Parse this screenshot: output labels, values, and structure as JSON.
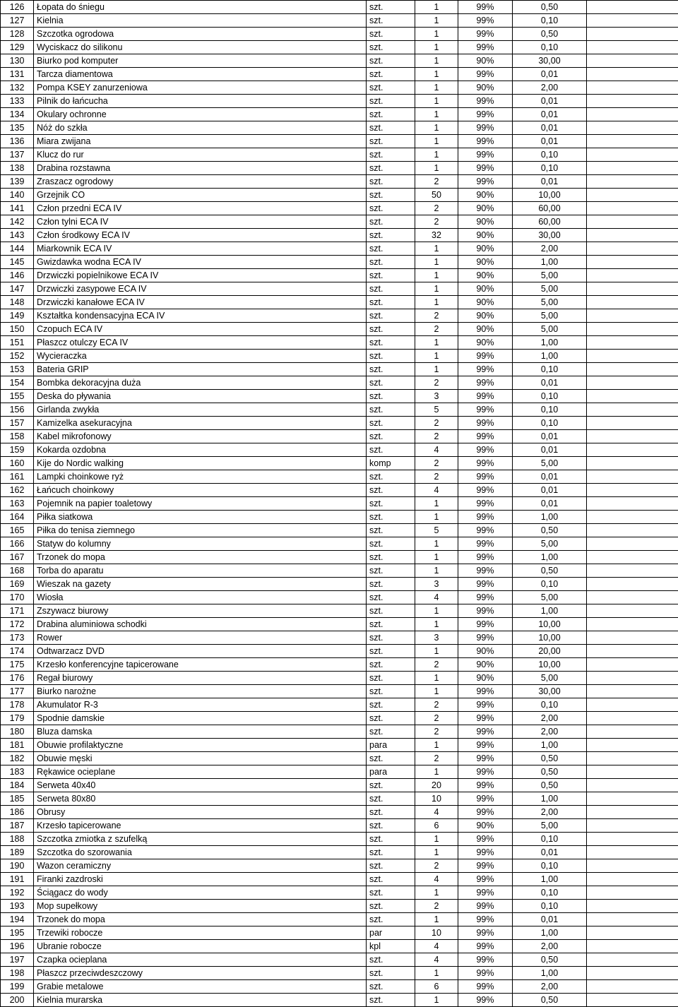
{
  "table": {
    "columns": [
      "num",
      "name",
      "unit",
      "qty",
      "pct",
      "price",
      "blank"
    ],
    "rows": [
      [
        "126",
        "Łopata do śniegu",
        "szt.",
        "1",
        "99%",
        "0,50",
        ""
      ],
      [
        "127",
        "Kielnia",
        "szt.",
        "1",
        "99%",
        "0,10",
        ""
      ],
      [
        "128",
        "Szczotka ogrodowa",
        "szt.",
        "1",
        "99%",
        "0,50",
        ""
      ],
      [
        "129",
        "Wyciskacz do silikonu",
        "szt.",
        "1",
        "99%",
        "0,10",
        ""
      ],
      [
        "130",
        "Biurko pod komputer",
        "szt.",
        "1",
        "90%",
        "30,00",
        ""
      ],
      [
        "131",
        "Tarcza diamentowa",
        "szt.",
        "1",
        "99%",
        "0,01",
        ""
      ],
      [
        "132",
        "Pompa KSEY zanurzeniowa",
        "szt.",
        "1",
        "90%",
        "2,00",
        ""
      ],
      [
        "133",
        "Pilnik do łańcucha",
        "szt.",
        "1",
        "99%",
        "0,01",
        ""
      ],
      [
        "134",
        "Okulary ochronne",
        "szt.",
        "1",
        "99%",
        "0,01",
        ""
      ],
      [
        "135",
        "Nóż do szkła",
        "szt.",
        "1",
        "99%",
        "0,01",
        ""
      ],
      [
        "136",
        "Miara zwijana",
        "szt.",
        "1",
        "99%",
        "0,01",
        ""
      ],
      [
        "137",
        "Klucz do rur",
        "szt.",
        "1",
        "99%",
        "0,10",
        ""
      ],
      [
        "138",
        "Drabina rozstawna",
        "szt.",
        "1",
        "99%",
        "0,10",
        ""
      ],
      [
        "139",
        "Zraszacz ogrodowy",
        "szt.",
        "2",
        "99%",
        "0,01",
        ""
      ],
      [
        "140",
        "Grzejnik CO",
        "szt.",
        "50",
        "90%",
        "10,00",
        ""
      ],
      [
        "141",
        "Człon przedni  ECA  IV",
        "szt.",
        "2",
        "90%",
        "60,00",
        ""
      ],
      [
        "142",
        "Człon tylni  ECA  IV",
        "szt.",
        "2",
        "90%",
        "60,00",
        ""
      ],
      [
        "143",
        "Człon środkowy  ECA  IV",
        "szt.",
        "32",
        "90%",
        "30,00",
        ""
      ],
      [
        "144",
        "Miarkownik  ECA  IV",
        "szt.",
        "1",
        "90%",
        "2,00",
        ""
      ],
      [
        "145",
        "Gwizdawka wodna  ECA  IV",
        "szt.",
        "1",
        "90%",
        "1,00",
        ""
      ],
      [
        "146",
        "Drzwiczki popielnikowe  ECA  IV",
        "szt.",
        "1",
        "90%",
        "5,00",
        ""
      ],
      [
        "147",
        "Drzwiczki zasypowe  ECA  IV",
        "szt.",
        "1",
        "90%",
        "5,00",
        ""
      ],
      [
        "148",
        "Drzwiczki kanałowe  ECA  IV",
        "szt.",
        "1",
        "90%",
        "5,00",
        ""
      ],
      [
        "149",
        "Kształtka kondensacyjna   ECA  IV",
        "szt.",
        "2",
        "90%",
        "5,00",
        ""
      ],
      [
        "150",
        "Czopuch  ECA  IV",
        "szt.",
        "2",
        "90%",
        "5,00",
        ""
      ],
      [
        "151",
        "Płaszcz otulczy  ECA  IV",
        "szt.",
        "1",
        "90%",
        "1,00",
        ""
      ],
      [
        "152",
        "Wycieraczka",
        "szt.",
        "1",
        "99%",
        "1,00",
        ""
      ],
      [
        "153",
        "Bateria GRIP",
        "szt.",
        "1",
        "99%",
        "0,10",
        ""
      ],
      [
        "154",
        "Bombka dekoracyjna duża",
        "szt.",
        "2",
        "99%",
        "0,01",
        ""
      ],
      [
        "155",
        "Deska do pływania",
        "szt.",
        "3",
        "99%",
        "0,10",
        ""
      ],
      [
        "156",
        "Girlanda zwykła",
        "szt.",
        "5",
        "99%",
        "0,10",
        ""
      ],
      [
        "157",
        "Kamizelka asekuracyjna",
        "szt.",
        "2",
        "99%",
        "0,10",
        ""
      ],
      [
        "158",
        "Kabel mikrofonowy",
        "szt.",
        "2",
        "99%",
        "0,01",
        ""
      ],
      [
        "159",
        "Kokarda ozdobna",
        "szt.",
        "4",
        "99%",
        "0,01",
        ""
      ],
      [
        "160",
        "Kije do Nordic  walking",
        "komp",
        "2",
        "99%",
        "5,00",
        ""
      ],
      [
        "161",
        "Lampki choinkowe ryż",
        "szt.",
        "2",
        "99%",
        "0,01",
        ""
      ],
      [
        "162",
        "Łańcuch choinkowy",
        "szt.",
        "4",
        "99%",
        "0,01",
        ""
      ],
      [
        "163",
        "Pojemnik na papier toaletowy",
        "szt.",
        "1",
        "99%",
        "0,01",
        ""
      ],
      [
        "164",
        "Piłka siatkowa",
        "szt.",
        "1",
        "99%",
        "1,00",
        ""
      ],
      [
        "165",
        "Piłka do tenisa ziemnego",
        "szt.",
        "5",
        "99%",
        "0,50",
        ""
      ],
      [
        "166",
        "Statyw do kolumny",
        "szt.",
        "1",
        "99%",
        "5,00",
        ""
      ],
      [
        "167",
        "Trzonek do mopa",
        "szt.",
        "1",
        "99%",
        "1,00",
        ""
      ],
      [
        "168",
        "Torba do aparatu",
        "szt.",
        "1",
        "99%",
        "0,50",
        ""
      ],
      [
        "169",
        "Wieszak na gazety",
        "szt.",
        "3",
        "99%",
        "0,10",
        ""
      ],
      [
        "170",
        "Wiosła",
        "szt.",
        "4",
        "99%",
        "5,00",
        ""
      ],
      [
        "171",
        "Zszywacz biurowy",
        "szt.",
        "1",
        "99%",
        "1,00",
        ""
      ],
      [
        "172",
        "Drabina aluminiowa schodki",
        "szt.",
        "1",
        "99%",
        "10,00",
        ""
      ],
      [
        "173",
        "Rower",
        "szt.",
        "3",
        "99%",
        "10,00",
        ""
      ],
      [
        "174",
        "Odtwarzacz DVD",
        "szt.",
        "1",
        "90%",
        "20,00",
        ""
      ],
      [
        "175",
        "Krzesło konferencyjne  tapicerowane",
        "szt.",
        "2",
        "90%",
        "10,00",
        ""
      ],
      [
        "176",
        "Regał biurowy",
        "szt.",
        "1",
        "90%",
        "5,00",
        ""
      ],
      [
        "177",
        "Biurko narożne",
        "szt.",
        "1",
        "99%",
        "30,00",
        ""
      ],
      [
        "178",
        "Akumulator R-3",
        "szt.",
        "2",
        "99%",
        "0,10",
        ""
      ],
      [
        "179",
        "Spodnie damskie",
        "szt.",
        "2",
        "99%",
        "2,00",
        ""
      ],
      [
        "180",
        "Bluza damska",
        "szt.",
        "2",
        "99%",
        "2,00",
        ""
      ],
      [
        "181",
        "Obuwie profilaktyczne",
        "para",
        "1",
        "99%",
        "1,00",
        ""
      ],
      [
        "182",
        "Obuwie męski",
        "szt.",
        "2",
        "99%",
        "0,50",
        ""
      ],
      [
        "183",
        "Rękawice ocieplane",
        "para",
        "1",
        "99%",
        "0,50",
        ""
      ],
      [
        "184",
        "Serweta 40x40",
        "szt.",
        "20",
        "99%",
        "0,50",
        ""
      ],
      [
        "185",
        "Serweta 80x80",
        "szt.",
        "10",
        "99%",
        "1,00",
        ""
      ],
      [
        "186",
        "Obrusy",
        "szt.",
        "4",
        "99%",
        "2,00",
        ""
      ],
      [
        "187",
        "Krzesło tapicerowane",
        "szt.",
        "6",
        "90%",
        "5,00",
        ""
      ],
      [
        "188",
        "Szczotka zmiotka z szufelką",
        "szt.",
        "1",
        "99%",
        "0,10",
        ""
      ],
      [
        "189",
        "Szczotka do szorowania",
        "szt.",
        "1",
        "99%",
        "0,01",
        ""
      ],
      [
        "190",
        "Wazon ceramiczny",
        "szt.",
        "2",
        "99%",
        "0,10",
        ""
      ],
      [
        "191",
        "Firanki  zazdroski",
        "szt.",
        "4",
        "99%",
        "1,00",
        ""
      ],
      [
        "192",
        "Ściągacz do wody",
        "szt.",
        "1",
        "99%",
        "0,10",
        ""
      ],
      [
        "193",
        "Mop supełkowy",
        "szt.",
        "2",
        "99%",
        "0,10",
        ""
      ],
      [
        "194",
        "Trzonek do mopa",
        "szt.",
        "1",
        "99%",
        "0,01",
        ""
      ],
      [
        "195",
        "Trzewiki robocze",
        "par",
        "10",
        "99%",
        "1,00",
        ""
      ],
      [
        "196",
        "Ubranie robocze",
        "kpl",
        "4",
        "99%",
        "2,00",
        ""
      ],
      [
        "197",
        "Czapka ocieplana",
        "szt.",
        "4",
        "99%",
        "0,50",
        ""
      ],
      [
        "198",
        "Płaszcz  przeciwdeszczowy",
        "szt.",
        "1",
        "99%",
        "1,00",
        ""
      ],
      [
        "199",
        "Grabie metalowe",
        "szt.",
        "6",
        "99%",
        "2,00",
        ""
      ],
      [
        "200",
        "Kielnia murarska",
        "szt.",
        "1",
        "99%",
        "0,50",
        ""
      ]
    ]
  }
}
